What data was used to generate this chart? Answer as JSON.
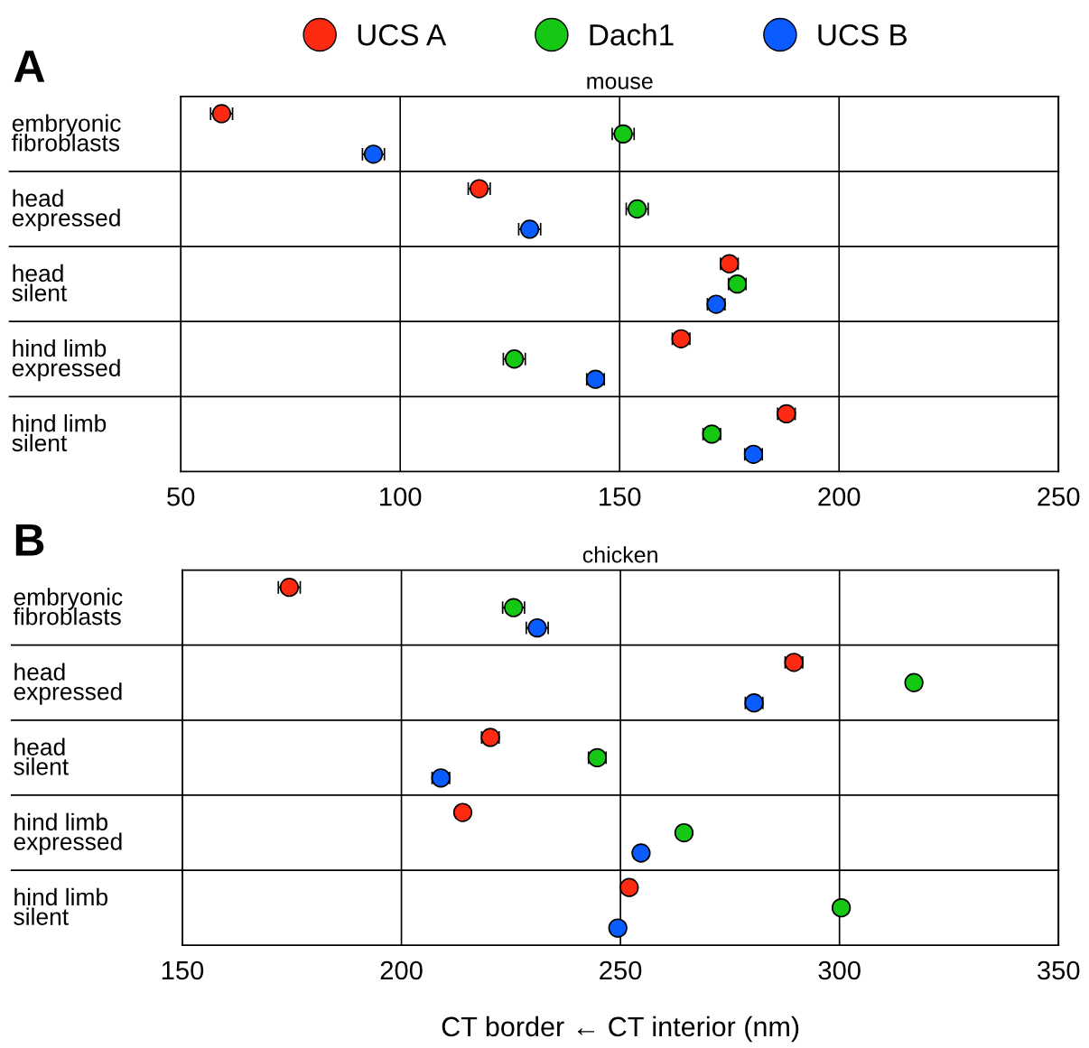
{
  "chart_data": [
    {
      "type": "scatter",
      "orientation": "horizontal",
      "title": "mouse",
      "annotations": [
        "A"
      ],
      "categories": [
        "embryonic\nfibroblasts",
        "head\nexpressed",
        "head\nsilent",
        "hind limb\nexpressed",
        "hind limb\nsilent"
      ],
      "series": [
        {
          "name": "UCS A",
          "color": "#ff2a12",
          "values": [
            59.3,
            118,
            175,
            164,
            188
          ],
          "errors": [
            2.5,
            2.5,
            2,
            2,
            2
          ]
        },
        {
          "name": "Dach1",
          "color": "#14c814",
          "values": [
            150.8,
            154,
            176.8,
            126,
            171
          ],
          "errors": [
            2.5,
            2.5,
            2,
            2.5,
            2
          ]
        },
        {
          "name": "UCS B",
          "color": "#0a5cff",
          "values": [
            93.9,
            129.5,
            172,
            144.5,
            180.5
          ],
          "errors": [
            2.5,
            2.5,
            2,
            2,
            2
          ]
        }
      ],
      "xlim": [
        50,
        250
      ],
      "xticks": [
        50,
        100,
        150,
        200,
        250
      ],
      "grid": "x",
      "legend": "top",
      "marker": "circle"
    },
    {
      "type": "scatter",
      "orientation": "horizontal",
      "title": "chicken",
      "xlabel": "CT border ← CT interior (nm)",
      "annotations": [
        "B"
      ],
      "categories": [
        "embryonic\nfibroblasts",
        "head\nexpressed",
        "head\nsilent",
        "hind limb\nexpressed",
        "hind limb\nsilent"
      ],
      "series": [
        {
          "color": "#ff2a12",
          "values": [
            174.4,
            289.6,
            220.3,
            214,
            252
          ],
          "errors": [
            2.5,
            2,
            2,
            1.5,
            1.5
          ]
        },
        {
          "color": "#14c814",
          "values": [
            225.6,
            317,
            244.7,
            264.5,
            300.4
          ],
          "errors": [
            2.5,
            1.5,
            2,
            1.5,
            1.5
          ]
        },
        {
          "color": "#0a5cff",
          "values": [
            231,
            280.5,
            209,
            254.7,
            249.4
          ],
          "errors": [
            2.5,
            2,
            2,
            1.5,
            1.5
          ]
        }
      ],
      "xlim": [
        150,
        350
      ],
      "xticks": [
        150,
        200,
        250,
        300,
        350
      ],
      "grid": "x",
      "marker": "circle"
    }
  ]
}
